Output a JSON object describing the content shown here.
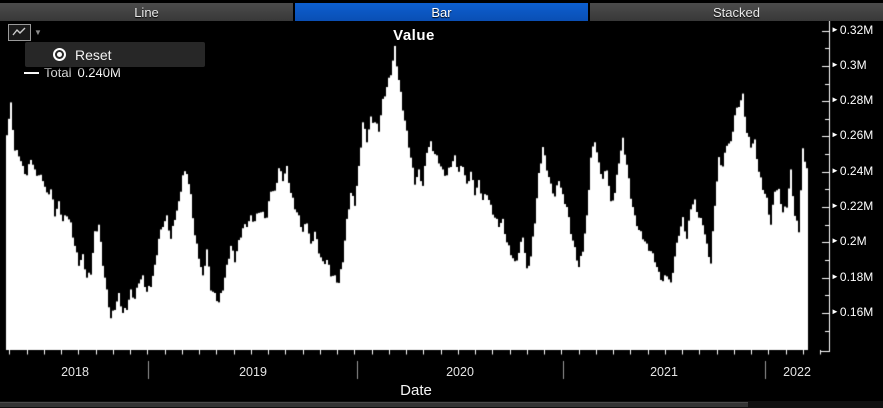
{
  "tab_bar": {
    "tabs": [
      {
        "label": "Line",
        "active": false
      },
      {
        "label": "Bar",
        "active": true
      },
      {
        "label": "Stacked",
        "active": false
      }
    ]
  },
  "toolbar": {
    "chart_tool_icon": "line-chart-icon",
    "dropdown_icon": "chevron-down-icon"
  },
  "context_menu": {
    "items": [
      {
        "icon": "record-circle-icon",
        "label": "Reset"
      }
    ]
  },
  "legend": {
    "items": [
      {
        "marker_color": "#ffffff",
        "label": "Total",
        "value": "0.240M"
      }
    ]
  },
  "chart_data": {
    "type": "bar",
    "title": "Value",
    "xlabel": "Date",
    "series_name": "Total",
    "bar_color": "#ffffff",
    "background": "#000000",
    "grid": false,
    "legend_position": "top-left",
    "x_tick_labels": [
      "2018",
      "2019",
      "2020",
      "2021",
      "2022"
    ],
    "y_tick_labels": [
      "0.32M",
      "0.3M",
      "0.28M",
      "0.26M",
      "0.24M",
      "0.22M",
      "0.2M",
      "0.18M",
      "0.16M"
    ],
    "y_major_values_M": [
      0.32,
      0.3,
      0.28,
      0.26,
      0.24,
      0.22,
      0.2,
      0.18,
      0.16
    ],
    "ylim_M": [
      0.139,
      0.326
    ],
    "x_range_note": "dense daily bars from ~mid-2018 through early-2022; values in millions (M)",
    "envelope_samples_M": [
      0.262,
      0.278,
      0.252,
      0.25,
      0.242,
      0.238,
      0.248,
      0.24,
      0.238,
      0.236,
      0.227,
      0.23,
      0.216,
      0.222,
      0.212,
      0.216,
      0.21,
      0.198,
      0.188,
      0.192,
      0.18,
      0.183,
      0.205,
      0.21,
      0.188,
      0.172,
      0.157,
      0.163,
      0.17,
      0.16,
      0.163,
      0.172,
      0.168,
      0.178,
      0.18,
      0.172,
      0.176,
      0.186,
      0.202,
      0.21,
      0.214,
      0.202,
      0.214,
      0.222,
      0.238,
      0.24,
      0.226,
      0.204,
      0.192,
      0.18,
      0.196,
      0.174,
      0.17,
      0.166,
      0.174,
      0.186,
      0.198,
      0.19,
      0.2,
      0.208,
      0.21,
      0.214,
      0.212,
      0.218,
      0.216,
      0.214,
      0.23,
      0.228,
      0.242,
      0.236,
      0.242,
      0.228,
      0.22,
      0.214,
      0.206,
      0.212,
      0.198,
      0.206,
      0.195,
      0.188,
      0.19,
      0.182,
      0.18,
      0.177,
      0.19,
      0.212,
      0.228,
      0.222,
      0.242,
      0.268,
      0.258,
      0.27,
      0.268,
      0.264,
      0.28,
      0.288,
      0.296,
      0.31,
      0.292,
      0.276,
      0.262,
      0.248,
      0.234,
      0.24,
      0.232,
      0.252,
      0.256,
      0.25,
      0.246,
      0.24,
      0.238,
      0.244,
      0.248,
      0.24,
      0.244,
      0.232,
      0.24,
      0.228,
      0.234,
      0.224,
      0.228,
      0.22,
      0.214,
      0.21,
      0.212,
      0.2,
      0.194,
      0.188,
      0.194,
      0.204,
      0.184,
      0.192,
      0.212,
      0.238,
      0.254,
      0.242,
      0.232,
      0.226,
      0.236,
      0.226,
      0.22,
      0.206,
      0.196,
      0.186,
      0.196,
      0.214,
      0.248,
      0.258,
      0.244,
      0.236,
      0.242,
      0.222,
      0.228,
      0.246,
      0.258,
      0.244,
      0.226,
      0.214,
      0.207,
      0.203,
      0.198,
      0.195,
      0.19,
      0.182,
      0.178,
      0.182,
      0.176,
      0.192,
      0.205,
      0.213,
      0.202,
      0.22,
      0.223,
      0.214,
      0.211,
      0.198,
      0.188,
      0.222,
      0.247,
      0.243,
      0.256,
      0.256,
      0.272,
      0.278,
      0.283,
      0.262,
      0.255,
      0.257,
      0.24,
      0.231,
      0.224,
      0.21,
      0.23,
      0.229,
      0.217,
      0.221,
      0.24,
      0.215,
      0.207,
      0.252,
      0.242
    ]
  },
  "scrollbar": {
    "present": true
  },
  "colors": {
    "accent_blue": "#0b57c4",
    "tab_bg": "#3f3f3f",
    "popup_bg": "#272727",
    "chart_fg": "#ffffff",
    "chart_bg": "#000000"
  }
}
